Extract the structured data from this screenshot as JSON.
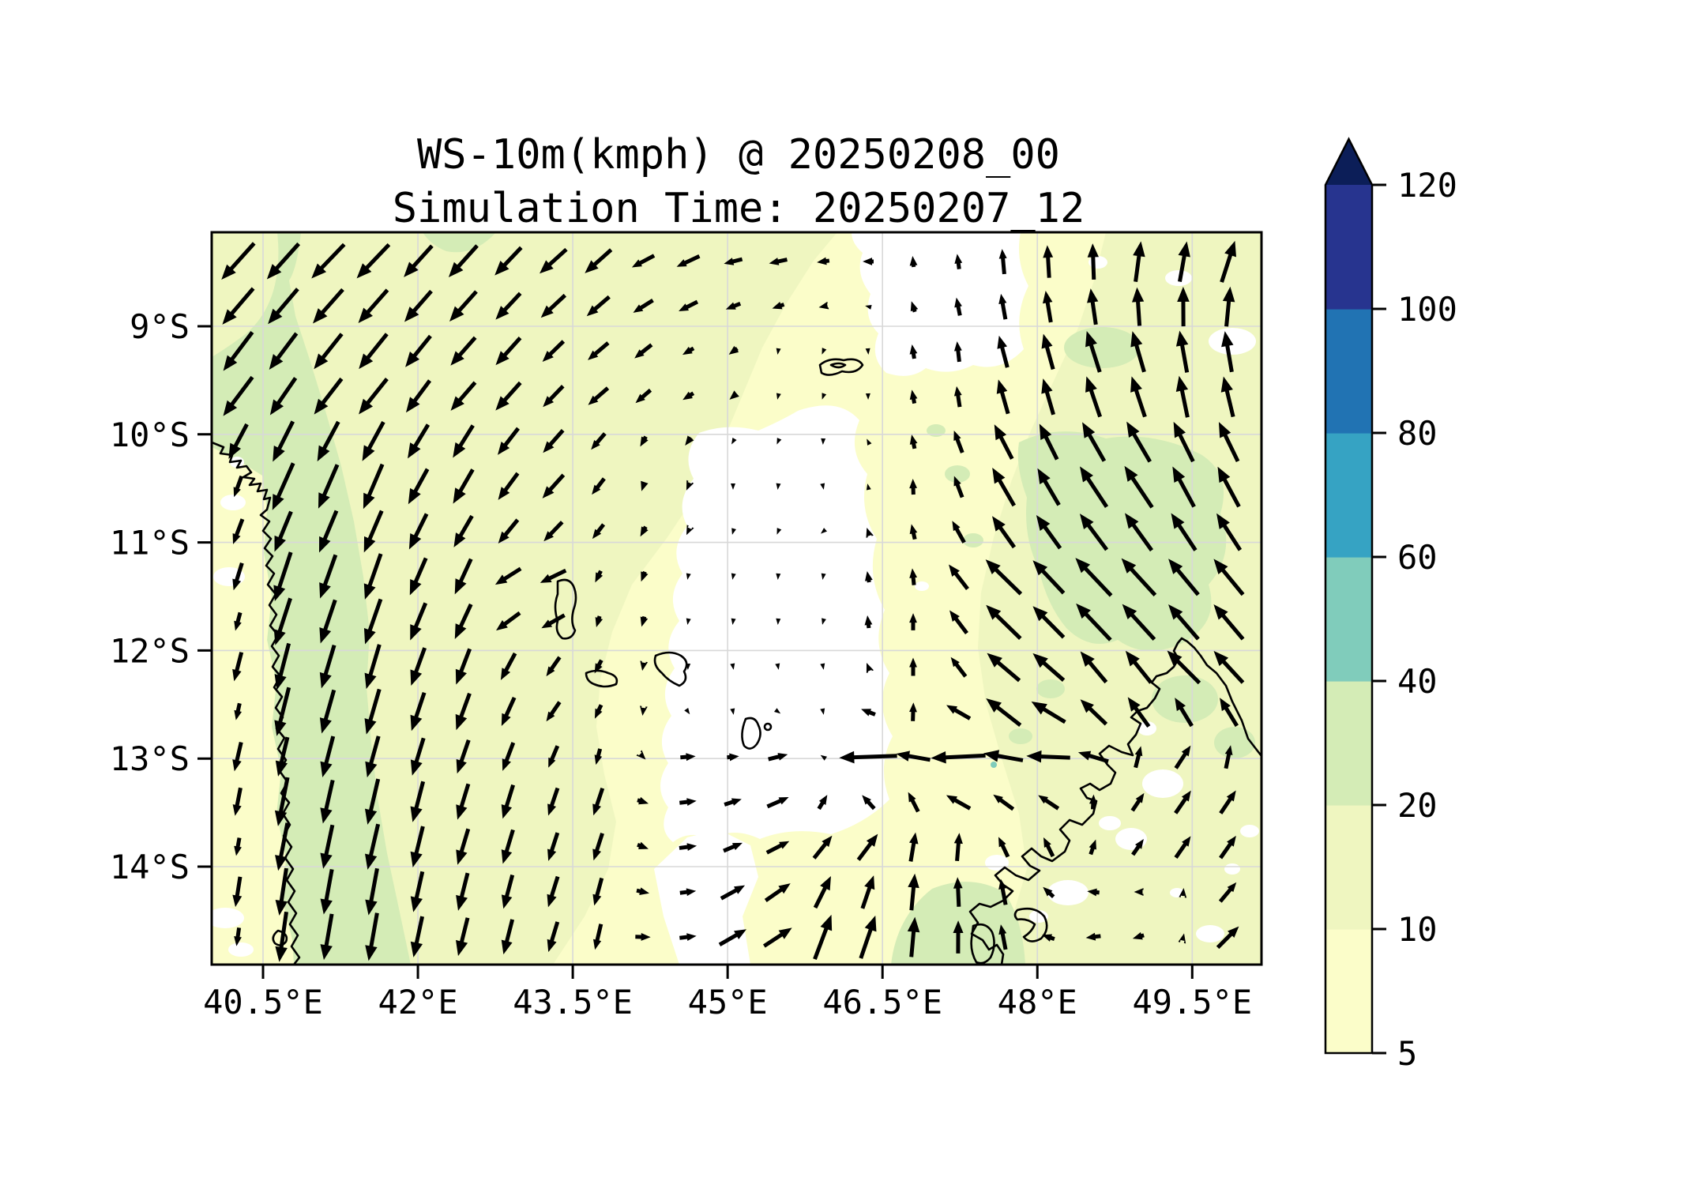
{
  "chart_data": {
    "type": "quiver_filled_contour_map",
    "title": "WS-10m(kmph) @ 20250208_00",
    "subtitle": "Simulation Time: 20250207_12",
    "variable": "WS-10m",
    "units": "kmph",
    "x_axis": {
      "ticks": [
        {
          "lon": 40.5,
          "label": "40.5°E"
        },
        {
          "lon": 42.0,
          "label": "42°E"
        },
        {
          "lon": 43.5,
          "label": "43.5°E"
        },
        {
          "lon": 45.0,
          "label": "45°E"
        },
        {
          "lon": 46.5,
          "label": "46.5°E"
        },
        {
          "lon": 48.0,
          "label": "48°E"
        },
        {
          "lon": 49.5,
          "label": "49.5°E"
        }
      ],
      "range": [
        40.0,
        50.17
      ]
    },
    "y_axis": {
      "ticks": [
        {
          "lat": 9,
          "label": "9°S"
        },
        {
          "lat": 10,
          "label": "10°S"
        },
        {
          "lat": 11,
          "label": "11°S"
        },
        {
          "lat": 12,
          "label": "12°S"
        },
        {
          "lat": 13,
          "label": "13°S"
        },
        {
          "lat": 14,
          "label": "14°S"
        }
      ],
      "range": [
        8.13,
        14.91
      ]
    },
    "grid": true,
    "colorbar": {
      "levels": [
        5,
        10,
        20,
        40,
        60,
        80,
        100,
        120
      ],
      "labels": [
        "5",
        "10",
        "20",
        "40",
        "60",
        "80",
        "100",
        "120"
      ],
      "segment_colors": [
        "#fbfdc9",
        "#eff6c0",
        "#d4ecb6",
        "#80ccbb",
        "#36a3c3",
        "#2173b3",
        "#27348f"
      ],
      "over_color": "#0c1e58",
      "under_color": "#ffffff",
      "orientation": "vertical",
      "position": "right"
    },
    "palette": {
      "under": "#ffffff",
      "c5_10": "#fbfdc9",
      "c10_20": "#eff6c0",
      "c20_40": "#d4ecb6",
      "c40_60": "#80ccbb",
      "c60_80": "#36a3c3",
      "c80_100": "#2173b3",
      "c100_120": "#27348f",
      "over": "#0c1e58",
      "arrow": "#000000",
      "gridline": "#d8d8d8"
    },
    "wind_vectors_note": "sampled quiver control points: [lon_degE, lat_degS, direction_deg_math_ccw_from_east, arrow_length_px]",
    "wind_vectors": [
      [
        40.3,
        8.4,
        228,
        62
      ],
      [
        41.3,
        8.35,
        226,
        60
      ],
      [
        42.4,
        8.4,
        228,
        54
      ],
      [
        43.5,
        8.4,
        222,
        46
      ],
      [
        44.5,
        8.45,
        205,
        32
      ],
      [
        45.3,
        8.4,
        192,
        24
      ],
      [
        46.1,
        8.35,
        188,
        16
      ],
      [
        46.9,
        8.3,
        95,
        14
      ],
      [
        47.7,
        8.3,
        95,
        32
      ],
      [
        48.4,
        8.3,
        92,
        46
      ],
      [
        49.1,
        8.3,
        82,
        52
      ],
      [
        49.8,
        8.3,
        72,
        55
      ],
      [
        40.2,
        9.5,
        233,
        62
      ],
      [
        41.4,
        9.5,
        231,
        58
      ],
      [
        42.7,
        9.5,
        228,
        48
      ],
      [
        43.8,
        9.4,
        220,
        34
      ],
      [
        44.7,
        9.4,
        210,
        16
      ],
      [
        45.5,
        9.4,
        265,
        8
      ],
      [
        46.3,
        9.4,
        278,
        8
      ],
      [
        47.1,
        9.4,
        95,
        26
      ],
      [
        47.9,
        9.5,
        105,
        48
      ],
      [
        48.7,
        9.4,
        108,
        56
      ],
      [
        49.5,
        9.4,
        100,
        54
      ],
      [
        40.15,
        10.6,
        252,
        22
      ],
      [
        40.55,
        10.5,
        246,
        66
      ],
      [
        41.4,
        10.5,
        247,
        62
      ],
      [
        42.4,
        10.4,
        240,
        50
      ],
      [
        43.3,
        10.4,
        228,
        40
      ],
      [
        44.2,
        10.4,
        252,
        12
      ],
      [
        45.1,
        10.5,
        270,
        6
      ],
      [
        45.9,
        10.4,
        282,
        7
      ],
      [
        46.8,
        10.5,
        92,
        20
      ],
      [
        47.8,
        10.4,
        120,
        56
      ],
      [
        48.8,
        10.4,
        124,
        64
      ],
      [
        49.6,
        10.4,
        118,
        58
      ],
      [
        40.15,
        11.6,
        256,
        20
      ],
      [
        40.6,
        11.5,
        252,
        68
      ],
      [
        41.5,
        11.5,
        251,
        62
      ],
      [
        42.4,
        11.5,
        246,
        50
      ],
      [
        43.1,
        11.5,
        200,
        40
      ],
      [
        43.9,
        11.6,
        258,
        14
      ],
      [
        44.8,
        11.5,
        265,
        6
      ],
      [
        45.7,
        11.5,
        272,
        6
      ],
      [
        46.7,
        11.6,
        88,
        22
      ],
      [
        47.7,
        11.5,
        136,
        64
      ],
      [
        48.7,
        11.5,
        134,
        68
      ],
      [
        49.6,
        11.5,
        130,
        60
      ],
      [
        40.15,
        12.5,
        258,
        20
      ],
      [
        40.6,
        12.4,
        256,
        66
      ],
      [
        41.5,
        12.4,
        254,
        60
      ],
      [
        42.5,
        12.4,
        250,
        50
      ],
      [
        43.3,
        12.4,
        235,
        30
      ],
      [
        44.2,
        12.4,
        262,
        10
      ],
      [
        45.1,
        12.5,
        280,
        7
      ],
      [
        45.9,
        12.4,
        285,
        10
      ],
      [
        46.8,
        12.4,
        82,
        25
      ],
      [
        47.8,
        12.4,
        140,
        58
      ],
      [
        48.8,
        12.3,
        128,
        52
      ],
      [
        49.5,
        12.15,
        135,
        58
      ],
      [
        44.7,
        13.1,
        5,
        20
      ],
      [
        45.5,
        13.1,
        14,
        26
      ],
      [
        46.4,
        13.05,
        182,
        74
      ],
      [
        47.3,
        13.05,
        183,
        70
      ],
      [
        48.2,
        13.0,
        178,
        56
      ],
      [
        49.3,
        13.1,
        55,
        35
      ],
      [
        40.15,
        13.7,
        260,
        20
      ],
      [
        40.6,
        13.6,
        259,
        66
      ],
      [
        41.6,
        13.6,
        257,
        60
      ],
      [
        42.6,
        13.6,
        253,
        48
      ],
      [
        43.6,
        13.6,
        250,
        40
      ],
      [
        44.5,
        13.6,
        8,
        24
      ],
      [
        45.4,
        13.6,
        25,
        34
      ],
      [
        46.2,
        13.7,
        50,
        44
      ],
      [
        47.0,
        13.7,
        78,
        40
      ],
      [
        47.9,
        13.7,
        115,
        28
      ],
      [
        48.8,
        13.6,
        48,
        28
      ],
      [
        49.6,
        13.6,
        52,
        38
      ],
      [
        40.15,
        14.6,
        262,
        22
      ],
      [
        40.6,
        14.5,
        262,
        66
      ],
      [
        41.5,
        14.5,
        260,
        62
      ],
      [
        42.5,
        14.5,
        256,
        50
      ],
      [
        43.5,
        14.4,
        252,
        42
      ],
      [
        44.4,
        14.5,
        5,
        22
      ],
      [
        45.3,
        14.5,
        30,
        44
      ],
      [
        46.1,
        14.6,
        70,
        62
      ],
      [
        46.9,
        14.5,
        85,
        52
      ],
      [
        47.6,
        14.4,
        100,
        34
      ],
      [
        48.4,
        14.5,
        190,
        20
      ],
      [
        49.1,
        14.5,
        200,
        16
      ],
      [
        49.8,
        14.6,
        45,
        38
      ]
    ],
    "regions": {
      "calm_under_5": [
        "central Mozambique Channel ~44-46.3E / 9.6-14.9S",
        "north ~45.9-47.4E / 8.1-9.4S",
        "scattered patches over NW Madagascar and NE corner"
      ],
      "speed_20_40": [
        "band along African coast 40.5-42E south of 10S",
        "NE Madagascar offshore blob 47.5-49.6E / 10-12S",
        "south blob ~46.3-47E near 14.5-14.9S"
      ]
    }
  }
}
